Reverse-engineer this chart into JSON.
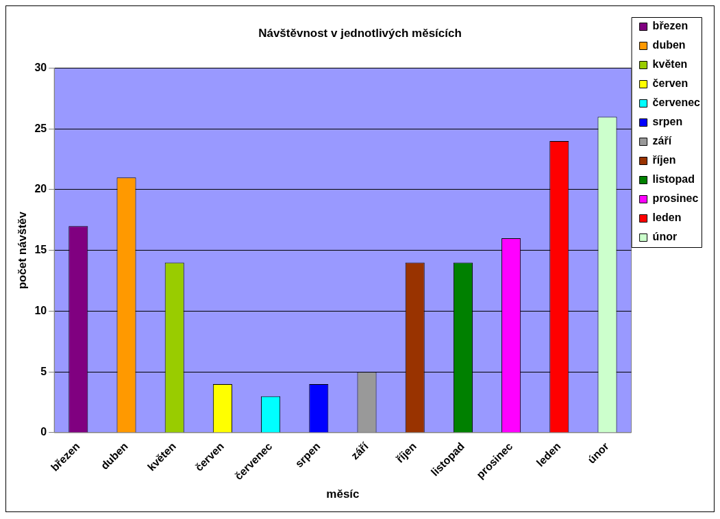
{
  "chart_data": {
    "type": "bar",
    "title": "Návštěvnost v jednotlivých měsících",
    "xlabel": "měsíc",
    "ylabel": "počet návštěv",
    "categories": [
      "březen",
      "duben",
      "květen",
      "červen",
      "červenec",
      "srpen",
      "září",
      "říjen",
      "listopad",
      "prosinec",
      "leden",
      "únor"
    ],
    "series": [
      {
        "name": "březen",
        "color": "#800080",
        "values": [
          17,
          null,
          null,
          null,
          null,
          null,
          null,
          null,
          null,
          null,
          null,
          null
        ]
      },
      {
        "name": "duben",
        "color": "#ff9900",
        "values": [
          null,
          21,
          null,
          null,
          null,
          null,
          null,
          null,
          null,
          null,
          null,
          null
        ]
      },
      {
        "name": "květen",
        "color": "#99cc00",
        "values": [
          null,
          null,
          14,
          null,
          null,
          null,
          null,
          null,
          null,
          null,
          null,
          null
        ]
      },
      {
        "name": "červen",
        "color": "#ffff00",
        "values": [
          null,
          null,
          null,
          4,
          null,
          null,
          null,
          null,
          null,
          null,
          null,
          null
        ]
      },
      {
        "name": "červenec",
        "color": "#00ffff",
        "values": [
          null,
          null,
          null,
          null,
          3,
          null,
          null,
          null,
          null,
          null,
          null,
          null
        ]
      },
      {
        "name": "srpen",
        "color": "#0000ff",
        "values": [
          null,
          null,
          null,
          null,
          null,
          4,
          null,
          null,
          null,
          null,
          null,
          null
        ]
      },
      {
        "name": "září",
        "color": "#999999",
        "values": [
          null,
          null,
          null,
          null,
          null,
          null,
          5,
          null,
          null,
          null,
          null,
          null
        ]
      },
      {
        "name": "říjen",
        "color": "#993300",
        "values": [
          null,
          null,
          null,
          null,
          null,
          null,
          null,
          14,
          null,
          null,
          null,
          null
        ]
      },
      {
        "name": "listopad",
        "color": "#008000",
        "values": [
          null,
          null,
          null,
          null,
          null,
          null,
          null,
          null,
          14,
          null,
          null,
          null
        ]
      },
      {
        "name": "prosinec",
        "color": "#ff00ff",
        "values": [
          null,
          null,
          null,
          null,
          null,
          null,
          null,
          null,
          null,
          16,
          null,
          null
        ]
      },
      {
        "name": "leden",
        "color": "#ff0000",
        "values": [
          null,
          null,
          null,
          null,
          null,
          null,
          null,
          null,
          null,
          null,
          24,
          null
        ]
      },
      {
        "name": "únor",
        "color": "#ccffcc",
        "values": [
          null,
          null,
          null,
          null,
          null,
          null,
          null,
          null,
          null,
          null,
          null,
          26
        ]
      }
    ],
    "ylim": [
      0,
      30
    ],
    "yticks": [
      0,
      5,
      10,
      15,
      20,
      25,
      30
    ],
    "grid": "y",
    "legend": "right"
  }
}
